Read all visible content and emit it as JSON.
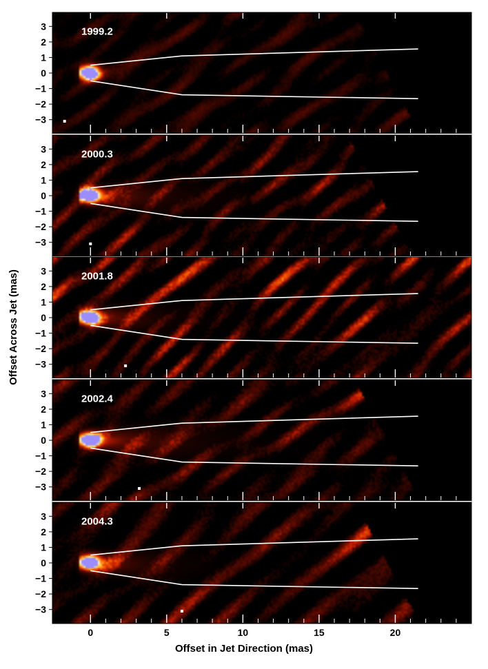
{
  "chart_data": {
    "type": "heatmap",
    "xlabel": "Offset in Jet Direction (mas)",
    "ylabel": "Offset Across Jet (mas)",
    "xlim": [
      -2.5,
      25
    ],
    "ylim": [
      -3.9,
      3.9
    ],
    "xticks": [
      0,
      5,
      10,
      15,
      20
    ],
    "yticks": [
      -3,
      -2,
      -1,
      0,
      1,
      2,
      3
    ],
    "grid": false,
    "colormap": [
      "#000000",
      "#5a0a00",
      "#c81e00",
      "#ff6a00",
      "#ffd040",
      "#fff6d0",
      "#9b8cff"
    ],
    "jet_boundary": {
      "upper": [
        [
          0,
          0.5
        ],
        [
          6,
          1.1
        ],
        [
          21.5,
          1.55
        ]
      ],
      "lower": [
        [
          0,
          -0.5
        ],
        [
          6,
          -1.4
        ],
        [
          21.5,
          -1.65
        ]
      ]
    },
    "panels": [
      {
        "epoch": "1999.2",
        "blank_from_x": 19.5,
        "beam_x": -1.7,
        "core_flux": 1.0,
        "jet_extent": 1.4,
        "noise": 0.55
      },
      {
        "epoch": "2000.3",
        "blank_from_x": 19.0,
        "beam_x": 0.0,
        "core_flux": 1.0,
        "jet_extent": 5.0,
        "noise": 0.85
      },
      {
        "epoch": "2001.8",
        "blank_from_x": null,
        "beam_x": 2.3,
        "core_flux": 1.0,
        "jet_extent": 4.0,
        "noise": 0.95
      },
      {
        "epoch": "2002.4",
        "blank_from_x": 19.5,
        "beam_x": 3.2,
        "core_flux": 1.0,
        "jet_extent": 6.0,
        "noise": 0.85
      },
      {
        "epoch": "2004.3",
        "blank_from_x": 19.5,
        "beam_x": 6.0,
        "core_flux": 1.0,
        "jet_extent": 4.0,
        "noise": 0.85
      }
    ]
  }
}
